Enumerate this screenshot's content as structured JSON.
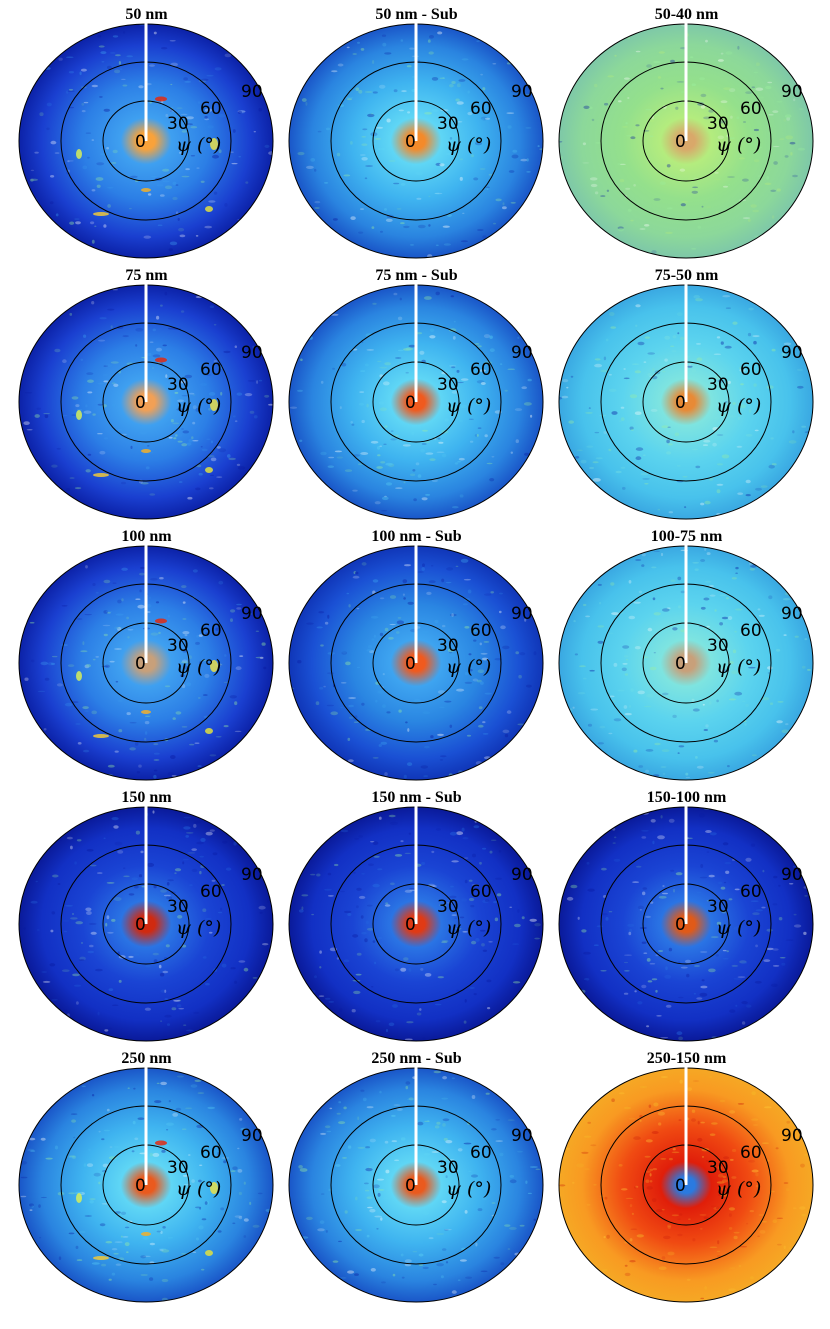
{
  "chart_data": [
    {
      "type": "polar-heatmap",
      "title": "50 nm",
      "axis_label": "ψ (°)",
      "r_ticks": [
        "0",
        "30",
        "60",
        "90"
      ],
      "theme": "medium",
      "center_color": "#f9a23a",
      "hotspots": true
    },
    {
      "type": "polar-heatmap",
      "title": "50 nm - Sub",
      "axis_label": "ψ (°)",
      "r_ticks": [
        "0",
        "30",
        "60",
        "90"
      ],
      "theme": "cyan",
      "center_color": "#f48a2a",
      "hotspots": false
    },
    {
      "type": "polar-heatmap",
      "title": "50-40 nm",
      "axis_label": "ψ (°)",
      "r_ticks": [
        "0",
        "30",
        "60",
        "90"
      ],
      "theme": "green",
      "center_color": "#d9a86a",
      "hotspots": false
    },
    {
      "type": "polar-heatmap",
      "title": "75 nm",
      "axis_label": "ψ (°)",
      "r_ticks": [
        "0",
        "30",
        "60",
        "90"
      ],
      "theme": "medium",
      "center_color": "#f2a055",
      "hotspots": true
    },
    {
      "type": "polar-heatmap",
      "title": "75 nm - Sub",
      "axis_label": "ψ (°)",
      "r_ticks": [
        "0",
        "30",
        "60",
        "90"
      ],
      "theme": "cyan",
      "center_color": "#f05a1e",
      "hotspots": false
    },
    {
      "type": "polar-heatmap",
      "title": "75-50 nm",
      "axis_label": "ψ (°)",
      "r_ticks": [
        "0",
        "30",
        "60",
        "90"
      ],
      "theme": "cyanlight",
      "center_color": "#e88a36",
      "hotspots": false
    },
    {
      "type": "polar-heatmap",
      "title": "100 nm",
      "axis_label": "ψ (°)",
      "r_ticks": [
        "0",
        "30",
        "60",
        "90"
      ],
      "theme": "medium",
      "center_color": "#c8a07a",
      "hotspots": true
    },
    {
      "type": "polar-heatmap",
      "title": "100 nm - Sub",
      "axis_label": "ψ (°)",
      "r_ticks": [
        "0",
        "30",
        "60",
        "90"
      ],
      "theme": "mediumdark",
      "center_color": "#f05a1e",
      "hotspots": false
    },
    {
      "type": "polar-heatmap",
      "title": "100-75 nm",
      "axis_label": "ψ (°)",
      "r_ticks": [
        "0",
        "30",
        "60",
        "90"
      ],
      "theme": "cyanlight",
      "center_color": "#c8a07a",
      "hotspots": false
    },
    {
      "type": "polar-heatmap",
      "title": "150 nm",
      "axis_label": "ψ (°)",
      "r_ticks": [
        "0",
        "30",
        "60",
        "90"
      ],
      "theme": "dark",
      "center_color": "#d02a10",
      "hotspots": false
    },
    {
      "type": "polar-heatmap",
      "title": "150 nm - Sub",
      "axis_label": "ψ (°)",
      "r_ticks": [
        "0",
        "30",
        "60",
        "90"
      ],
      "theme": "dark",
      "center_color": "#e03a14",
      "hotspots": false
    },
    {
      "type": "polar-heatmap",
      "title": "150-100 nm",
      "axis_label": "ψ (°)",
      "r_ticks": [
        "0",
        "30",
        "60",
        "90"
      ],
      "theme": "dark",
      "center_color": "#e05a18",
      "hotspots": false
    },
    {
      "type": "polar-heatmap",
      "title": "250 nm",
      "axis_label": "ψ (°)",
      "r_ticks": [
        "0",
        "30",
        "60",
        "90"
      ],
      "theme": "cyan",
      "center_color": "#ea5a1e",
      "hotspots": true
    },
    {
      "type": "polar-heatmap",
      "title": "250 nm - Sub",
      "axis_label": "ψ (°)",
      "r_ticks": [
        "0",
        "30",
        "60",
        "90"
      ],
      "theme": "cyan",
      "center_color": "#ea5a1e",
      "hotspots": false
    },
    {
      "type": "polar-heatmap",
      "title": "250-150 nm",
      "axis_label": "ψ (°)",
      "r_ticks": [
        "0",
        "30",
        "60",
        "90"
      ],
      "theme": "warm",
      "center_color": "#2a7ae0",
      "hotspots": false
    }
  ],
  "colors": {
    "ring": "#000000",
    "meridian": "#ffffff",
    "theme_stops": {
      "medium": {
        "inner": "#3fa0f0",
        "mid": "#2c7fe6",
        "outer": "#1a3fd0",
        "edge": "#0c22a8"
      },
      "mediumdark": {
        "inner": "#3ea4f0",
        "mid": "#2a86e2",
        "outer": "#1a50d4",
        "edge": "#1036b8"
      },
      "cyan": {
        "inner": "#5fd6f5",
        "mid": "#3fb4f0",
        "outer": "#2a84e0",
        "edge": "#1a56c8"
      },
      "cyanlight": {
        "inner": "#7ee4e0",
        "mid": "#5cd4ee",
        "outer": "#48c2ec",
        "edge": "#3aa8e2"
      },
      "green": {
        "inner": "#b4ec7e",
        "mid": "#94e08c",
        "outer": "#8cd89a",
        "edge": "#7ec8a8"
      },
      "dark": {
        "inner": "#2a74e4",
        "mid": "#1a44d4",
        "outer": "#1230c4",
        "edge": "#0a1a9a"
      },
      "warm": {
        "inner": "#e01e0a",
        "mid": "#f04a12",
        "outer": "#f89a22",
        "edge": "#f6a824"
      }
    }
  }
}
